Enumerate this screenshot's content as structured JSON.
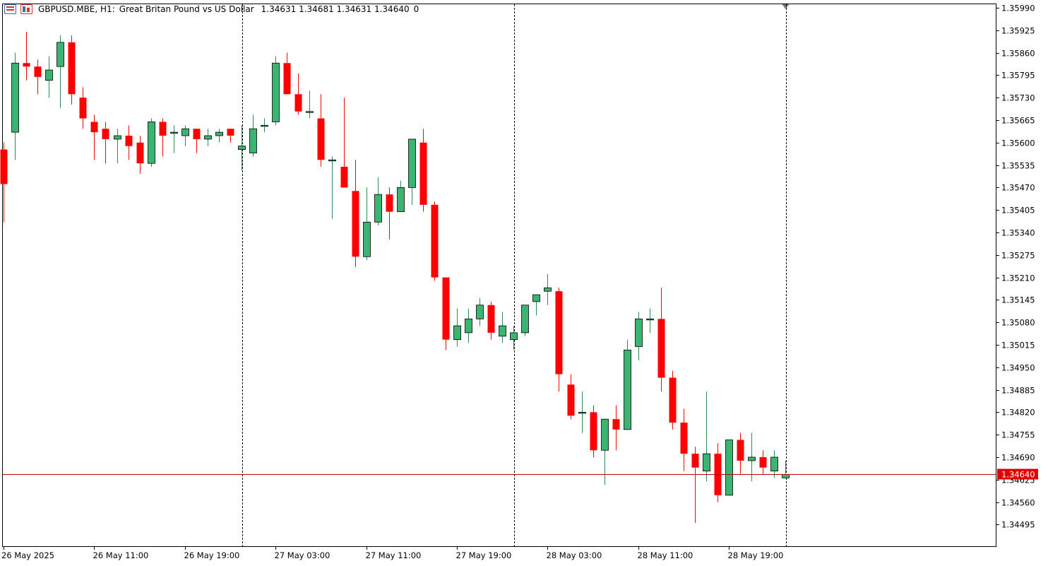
{
  "header": {
    "symbol": "GBPUSD.MBE, H1:",
    "description": "Great Britan Pound vs US Dollar",
    "ohlc": "1.34631 1.34681 1.34631 1.34640",
    "volume": "0"
  },
  "colors": {
    "bull": "#3cb371",
    "bear": "#ff0000",
    "wick": "#000000",
    "price_line": "#c00000",
    "price_label_bg": "#e00000",
    "separator": "#000000",
    "background": "#ffffff"
  },
  "chart_data": {
    "type": "candlestick",
    "timeframe": "H1",
    "current_price": 1.3464,
    "current_price_label": "1.34640",
    "y_ticks": [
      "1.35990",
      "1.35925",
      "1.35860",
      "1.35795",
      "1.35730",
      "1.35665",
      "1.35600",
      "1.35535",
      "1.35470",
      "1.35405",
      "1.35340",
      "1.35275",
      "1.35210",
      "1.35145",
      "1.35080",
      "1.35015",
      "1.34950",
      "1.34885",
      "1.34820",
      "1.34755",
      "1.34690",
      "1.34625",
      "1.34560",
      "1.34495"
    ],
    "x_labels": [
      {
        "text": "26 May 2025",
        "bar": 0
      },
      {
        "text": "26 May 11:00",
        "bar": 8
      },
      {
        "text": "26 May 19:00",
        "bar": 16
      },
      {
        "text": "27 May 03:00",
        "bar": 24
      },
      {
        "text": "27 May 11:00",
        "bar": 32
      },
      {
        "text": "27 May 19:00",
        "bar": 40
      },
      {
        "text": "28 May 03:00",
        "bar": 48
      },
      {
        "text": "28 May 11:00",
        "bar": 56
      },
      {
        "text": "28 May 19:00",
        "bar": 64
      }
    ],
    "day_separators": [
      21,
      45,
      69
    ],
    "candles": [
      [
        1.3558,
        1.356,
        1.3537,
        1.3548
      ],
      [
        1.3563,
        1.3586,
        1.3555,
        1.3583
      ],
      [
        1.3583,
        1.3592,
        1.3578,
        1.3582
      ],
      [
        1.3582,
        1.3584,
        1.3574,
        1.3579
      ],
      [
        1.3578,
        1.3585,
        1.3573,
        1.3581
      ],
      [
        1.3582,
        1.3591,
        1.357,
        1.3589
      ],
      [
        1.3589,
        1.3591,
        1.3571,
        1.3574
      ],
      [
        1.3573,
        1.3576,
        1.3564,
        1.3567
      ],
      [
        1.3566,
        1.3568,
        1.3555,
        1.3563
      ],
      [
        1.3564,
        1.3566,
        1.3554,
        1.3561
      ],
      [
        1.3561,
        1.3564,
        1.3554,
        1.3562
      ],
      [
        1.3562,
        1.3565,
        1.3555,
        1.3559
      ],
      [
        1.356,
        1.3562,
        1.3551,
        1.3554
      ],
      [
        1.3554,
        1.3567,
        1.3553,
        1.3566
      ],
      [
        1.3566,
        1.3567,
        1.3556,
        1.3562
      ],
      [
        1.3563,
        1.3565,
        1.3557,
        1.3563
      ],
      [
        1.3562,
        1.3565,
        1.3559,
        1.3564
      ],
      [
        1.3564,
        1.3564,
        1.3557,
        1.3561
      ],
      [
        1.3561,
        1.3564,
        1.3559,
        1.3562
      ],
      [
        1.3562,
        1.3564,
        1.356,
        1.3563
      ],
      [
        1.3564,
        1.3564,
        1.356,
        1.3562
      ],
      [
        1.3558,
        1.3565,
        1.3552,
        1.3559
      ],
      [
        1.3557,
        1.3568,
        1.3556,
        1.3564
      ],
      [
        1.3565,
        1.3567,
        1.3563,
        1.3565
      ],
      [
        1.3566,
        1.3585,
        1.3565,
        1.3583
      ],
      [
        1.3583,
        1.3586,
        1.3574,
        1.3574
      ],
      [
        1.3574,
        1.358,
        1.3568,
        1.3569
      ],
      [
        1.3569,
        1.3575,
        1.3567,
        1.3569
      ],
      [
        1.3567,
        1.3574,
        1.3553,
        1.3555
      ],
      [
        1.3555,
        1.3556,
        1.3538,
        1.3555
      ],
      [
        1.3553,
        1.3573,
        1.3547,
        1.3547
      ],
      [
        1.3546,
        1.3555,
        1.3524,
        1.3527
      ],
      [
        1.3527,
        1.3547,
        1.3526,
        1.3537
      ],
      [
        1.3537,
        1.355,
        1.3536,
        1.3545
      ],
      [
        1.3545,
        1.3547,
        1.3532,
        1.354
      ],
      [
        1.354,
        1.3549,
        1.354,
        1.3547
      ],
      [
        1.3547,
        1.3561,
        1.3542,
        1.3561
      ],
      [
        1.356,
        1.3564,
        1.354,
        1.3542
      ],
      [
        1.3542,
        1.3543,
        1.352,
        1.3521
      ],
      [
        1.3521,
        1.3521,
        1.35,
        1.3503
      ],
      [
        1.3503,
        1.3512,
        1.3501,
        1.3507
      ],
      [
        1.3505,
        1.3512,
        1.3502,
        1.3509
      ],
      [
        1.3509,
        1.3515,
        1.3507,
        1.3513
      ],
      [
        1.3513,
        1.3514,
        1.3503,
        1.3505
      ],
      [
        1.3504,
        1.3511,
        1.3502,
        1.3507
      ],
      [
        1.3503,
        1.3507,
        1.35,
        1.3505
      ],
      [
        1.3505,
        1.3513,
        1.3504,
        1.3513
      ],
      [
        1.3514,
        1.3516,
        1.351,
        1.3516
      ],
      [
        1.3517,
        1.3522,
        1.3513,
        1.3518
      ],
      [
        1.3517,
        1.3518,
        1.3488,
        1.3493
      ],
      [
        1.349,
        1.3493,
        1.348,
        1.3481
      ],
      [
        1.3482,
        1.3488,
        1.3476,
        1.3482
      ],
      [
        1.3482,
        1.3484,
        1.3469,
        1.3471
      ],
      [
        1.3471,
        1.348,
        1.3461,
        1.348
      ],
      [
        1.348,
        1.3484,
        1.3471,
        1.3477
      ],
      [
        1.3477,
        1.3503,
        1.3477,
        1.35
      ],
      [
        1.3501,
        1.3511,
        1.3497,
        1.3509
      ],
      [
        1.3509,
        1.3512,
        1.3505,
        1.3509
      ],
      [
        1.3509,
        1.3518,
        1.3488,
        1.3492
      ],
      [
        1.3492,
        1.3494,
        1.3477,
        1.3479
      ],
      [
        1.3479,
        1.3483,
        1.3465,
        1.347
      ],
      [
        1.347,
        1.3472,
        1.345,
        1.3466
      ],
      [
        1.3465,
        1.3488,
        1.3462,
        1.347
      ],
      [
        1.347,
        1.3473,
        1.3456,
        1.3458
      ],
      [
        1.3458,
        1.3474,
        1.3458,
        1.3474
      ],
      [
        1.3474,
        1.3476,
        1.3464,
        1.3468
      ],
      [
        1.3468,
        1.3476,
        1.3462,
        1.3469
      ],
      [
        1.3469,
        1.3471,
        1.3464,
        1.3466
      ],
      [
        1.3465,
        1.3471,
        1.3463,
        1.3469
      ],
      [
        1.3463,
        1.3468,
        1.3463,
        1.3464
      ]
    ]
  }
}
